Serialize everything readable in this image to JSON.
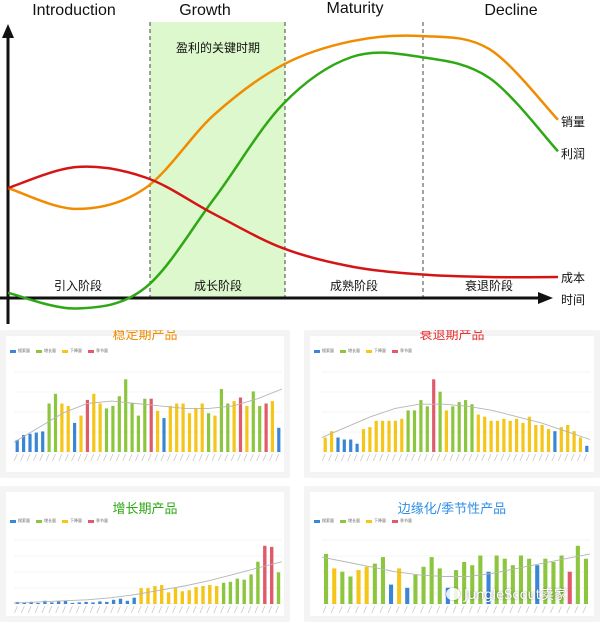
{
  "chart_data": [
    {
      "type": "line",
      "phases": [
        "Introduction",
        "Growth",
        "Maturity",
        "Decline"
      ],
      "stages": [
        "引入阶段",
        "成长阶段",
        "成熟阶段",
        "衰退阶段"
      ],
      "highlight_label": "盈利的关键时期",
      "xlabel": "时间",
      "x": [
        0,
        0.5,
        1,
        1.5,
        2,
        2.5,
        3,
        3.5,
        4
      ],
      "series": [
        {
          "name": "销量",
          "color": "#f08c00",
          "values": [
            0.42,
            0.34,
            0.42,
            0.7,
            0.89,
            0.98,
            1.0,
            0.95,
            0.68
          ]
        },
        {
          "name": "利润",
          "color": "#2ea814",
          "values": [
            0.02,
            -0.04,
            0.04,
            0.38,
            0.74,
            0.92,
            0.92,
            0.84,
            0.56
          ]
        },
        {
          "name": "成本",
          "color": "#d41515",
          "values": [
            0.42,
            0.5,
            0.46,
            0.32,
            0.19,
            0.12,
            0.09,
            0.08,
            0.08
          ]
        }
      ],
      "highlight_color": "#dcf8cc"
    },
    {
      "type": "bar",
      "title": "稳定期产品",
      "title_color": "#f08c00",
      "legend": [
        "搜索量",
        "增长量",
        "下降量",
        "季节量"
      ],
      "values": [
        10,
        14,
        15,
        16,
        17,
        40,
        48,
        40,
        38,
        24,
        30,
        43,
        48,
        40,
        36,
        38,
        46,
        60,
        40,
        30,
        44,
        44,
        34,
        28,
        38,
        40,
        40,
        32,
        36,
        40,
        32,
        30,
        52,
        40,
        42,
        45,
        38,
        50,
        38,
        40,
        42,
        20
      ],
      "bar_colors": [
        "b",
        "b",
        "b",
        "b",
        "b",
        "g",
        "g",
        "y",
        "y",
        "b",
        "y",
        "r",
        "y",
        "y",
        "g",
        "g",
        "g",
        "g",
        "g",
        "g",
        "g",
        "r",
        "y",
        "b",
        "y",
        "y",
        "y",
        "y",
        "y",
        "y",
        "g",
        "y",
        "g",
        "g",
        "y",
        "r",
        "y",
        "g",
        "g",
        "r",
        "y",
        "b"
      ],
      "trend": [
        8,
        20,
        32,
        40,
        42,
        40,
        38,
        36,
        36,
        38,
        44,
        52
      ]
    },
    {
      "type": "bar",
      "title": "衰退期产品",
      "title_color": "#e83030",
      "legend": [
        "搜索量",
        "增长量",
        "下降量",
        "季节量"
      ],
      "values": [
        14,
        20,
        14,
        12,
        12,
        8,
        22,
        24,
        30,
        30,
        30,
        30,
        32,
        40,
        40,
        50,
        44,
        70,
        58,
        40,
        44,
        48,
        50,
        46,
        36,
        34,
        30,
        30,
        32,
        30,
        32,
        28,
        34,
        26,
        26,
        22,
        20,
        24,
        26,
        20,
        14,
        6
      ],
      "bar_colors": [
        "y",
        "y",
        "b",
        "b",
        "b",
        "b",
        "y",
        "y",
        "y",
        "y",
        "y",
        "y",
        "y",
        "g",
        "g",
        "g",
        "g",
        "r",
        "g",
        "y",
        "g",
        "g",
        "g",
        "g",
        "y",
        "y",
        "y",
        "y",
        "y",
        "y",
        "y",
        "y",
        "y",
        "y",
        "y",
        "y",
        "b",
        "y",
        "y",
        "y",
        "y",
        "b"
      ],
      "trend": [
        14,
        24,
        34,
        42,
        46,
        46,
        44,
        40,
        34,
        28,
        20,
        12
      ]
    },
    {
      "type": "bar",
      "title": "增长期产品",
      "title_color": "#2ea814",
      "legend": [
        "搜索量",
        "增长量",
        "下降量",
        "季节量"
      ],
      "values": [
        4,
        2,
        4,
        2,
        6,
        3,
        5,
        6,
        2,
        3,
        4,
        3,
        5,
        4,
        8,
        10,
        6,
        12,
        30,
        30,
        34,
        36,
        22,
        30,
        24,
        26,
        32,
        34,
        36,
        34,
        40,
        42,
        48,
        46,
        56,
        80,
        110,
        108,
        60
      ],
      "bar_colors": [
        "b",
        "b",
        "b",
        "b",
        "b",
        "b",
        "b",
        "b",
        "b",
        "b",
        "b",
        "b",
        "b",
        "b",
        "b",
        "b",
        "b",
        "b",
        "y",
        "y",
        "y",
        "y",
        "y",
        "y",
        "y",
        "y",
        "y",
        "y",
        "y",
        "y",
        "g",
        "g",
        "g",
        "g",
        "g",
        "g",
        "r",
        "r",
        "g"
      ],
      "trend": [
        2,
        4,
        6,
        8,
        12,
        18,
        26,
        34,
        44,
        56,
        68,
        80
      ]
    },
    {
      "type": "bar",
      "title": "边缘化/季节性产品",
      "title_color": "#2f8fe6",
      "legend": [
        "搜索量",
        "增长量",
        "下降量",
        "季节量"
      ],
      "values": [
        62,
        44,
        40,
        34,
        42,
        46,
        50,
        58,
        24,
        44,
        20,
        36,
        46,
        58,
        44,
        20,
        42,
        52,
        48,
        60,
        40,
        60,
        56,
        48,
        60,
        56,
        48,
        56,
        52,
        60,
        40,
        72,
        56
      ],
      "bar_colors": [
        "g",
        "y",
        "g",
        "g",
        "y",
        "y",
        "g",
        "g",
        "b",
        "y",
        "b",
        "g",
        "g",
        "g",
        "g",
        "b",
        "g",
        "g",
        "g",
        "g",
        "b",
        "g",
        "g",
        "g",
        "g",
        "g",
        "b",
        "g",
        "g",
        "g",
        "r",
        "g",
        "g"
      ],
      "trend": [
        58,
        52,
        46,
        40,
        36,
        34,
        34,
        38,
        44,
        50,
        56,
        62
      ]
    }
  ],
  "colors": {
    "b": "#3a86d6",
    "g": "#8cc63e",
    "y": "#f5c518",
    "r": "#e05a6a"
  },
  "watermark": "JungleScout卖家"
}
